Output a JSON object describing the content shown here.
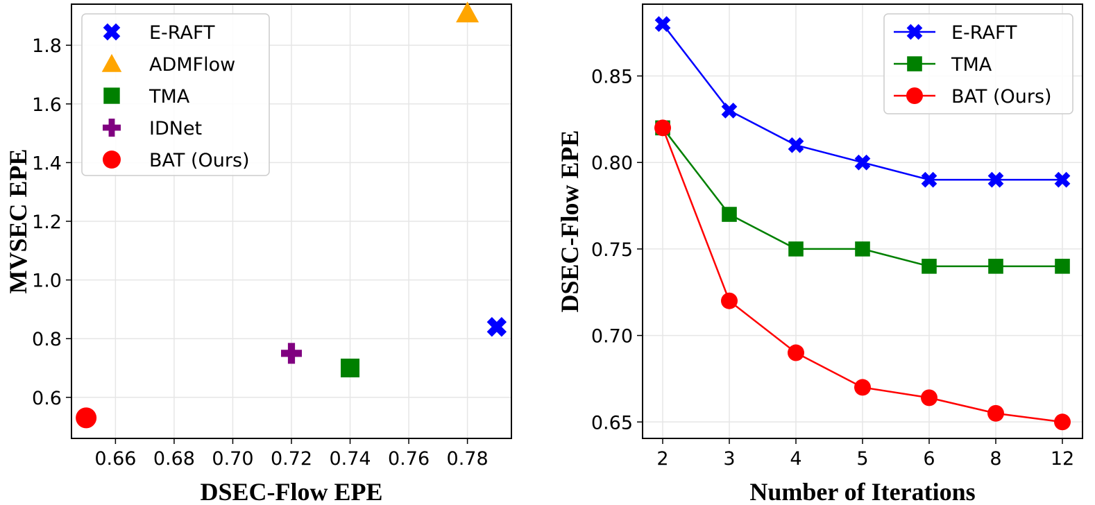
{
  "chart_data": [
    {
      "type": "scatter",
      "xlabel": "DSEC-Flow EPE",
      "ylabel": "MVSEC EPE",
      "xlim": [
        0.645,
        0.795
      ],
      "ylim": [
        0.46,
        1.94
      ],
      "xticks": [
        0.66,
        0.68,
        0.7,
        0.72,
        0.74,
        0.76,
        0.78
      ],
      "xtick_labels": [
        "0.66",
        "0.68",
        "0.70",
        "0.72",
        "0.74",
        "0.76",
        "0.78"
      ],
      "yticks": [
        0.6,
        0.8,
        1.0,
        1.2,
        1.4,
        1.6,
        1.8
      ],
      "ytick_labels": [
        "0.6",
        "0.8",
        "1.0",
        "1.2",
        "1.4",
        "1.6",
        "1.8"
      ],
      "grid": true,
      "legend_position": "top-left",
      "series": [
        {
          "name": "E-RAFT",
          "marker": "x-filled",
          "color": "#0000ff",
          "x": 0.79,
          "y": 0.84
        },
        {
          "name": "ADMFlow",
          "marker": "triangle",
          "color": "#ffa500",
          "x": 0.78,
          "y": 1.91
        },
        {
          "name": "TMA",
          "marker": "square",
          "color": "#008000",
          "x": 0.74,
          "y": 0.7
        },
        {
          "name": "IDNet",
          "marker": "plus-filled",
          "color": "#800080",
          "x": 0.72,
          "y": 0.75
        },
        {
          "name": "BAT (Ours)",
          "marker": "circle",
          "color": "#ff0000",
          "x": 0.65,
          "y": 0.53
        }
      ]
    },
    {
      "type": "line",
      "xlabel": "Number of Iterations",
      "ylabel": "DSEC-Flow EPE",
      "categories": [
        "2",
        "3",
        "4",
        "5",
        "6",
        "8",
        "12"
      ],
      "ylim": [
        0.6405,
        0.8915
      ],
      "yticks": [
        0.65,
        0.7,
        0.75,
        0.8,
        0.85
      ],
      "ytick_labels": [
        "0.65",
        "0.70",
        "0.75",
        "0.80",
        "0.85"
      ],
      "grid": true,
      "legend_position": "top-right",
      "series": [
        {
          "name": "E-RAFT",
          "marker": "x-filled",
          "color": "#0000ff",
          "values": [
            0.88,
            0.83,
            0.81,
            0.8,
            0.79,
            0.79,
            0.79
          ]
        },
        {
          "name": "TMA",
          "marker": "square",
          "color": "#008000",
          "values": [
            0.82,
            0.77,
            0.75,
            0.75,
            0.74,
            0.74,
            0.74
          ]
        },
        {
          "name": "BAT (Ours)",
          "marker": "circle",
          "color": "#ff0000",
          "values": [
            0.82,
            0.72,
            0.69,
            0.67,
            0.664,
            0.655,
            0.65
          ]
        }
      ]
    }
  ]
}
